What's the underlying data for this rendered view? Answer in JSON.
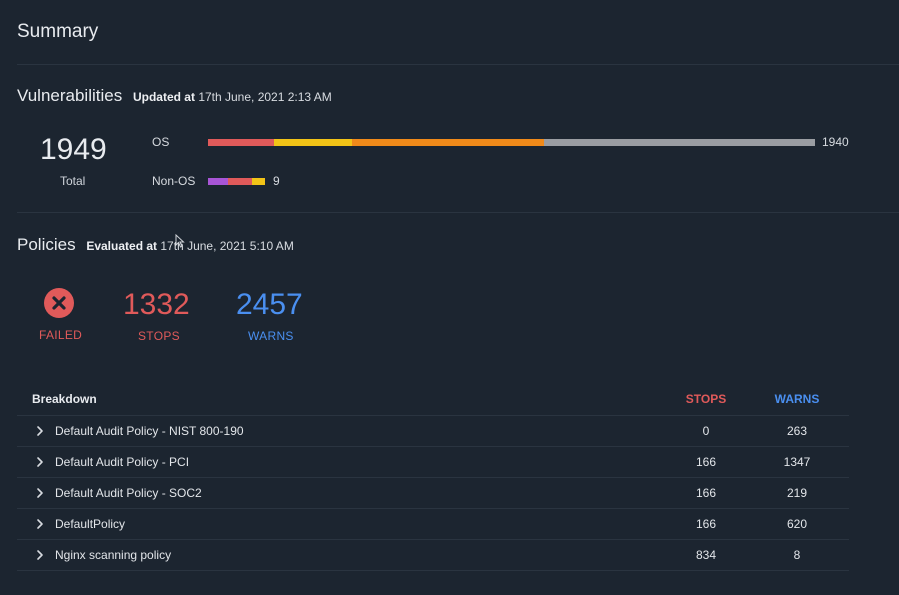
{
  "page_title": "Summary",
  "vulnerabilities": {
    "title": "Vulnerabilities",
    "updated_label": "Updated at",
    "updated_value": "17th June, 2021 2:13 AM",
    "total_value": "1949",
    "total_label": "Total",
    "os": {
      "label": "OS",
      "count": "1940",
      "segments": [
        {
          "color": "#e05a5a",
          "fraction": 0.108
        },
        {
          "color": "#f2c417",
          "fraction": 0.13
        },
        {
          "color": "#f08a1a",
          "fraction": 0.315
        },
        {
          "color": "#9a9da2",
          "fraction": 0.447
        }
      ]
    },
    "non_os": {
      "label": "Non-OS",
      "count": "9",
      "segments": [
        {
          "color": "#a855d6",
          "fraction": 0.35
        },
        {
          "color": "#e05a5a",
          "fraction": 0.42
        },
        {
          "color": "#f2c417",
          "fraction": 0.23
        }
      ]
    }
  },
  "policies": {
    "title": "Policies",
    "evaluated_label": "Evaluated at",
    "evaluated_value": "17th June, 2021 5:10 AM",
    "status_label": "FAILED",
    "stops_value": "1332",
    "stops_label": "STOPS",
    "warns_value": "2457",
    "warns_label": "WARNS"
  },
  "breakdown": {
    "header": "Breakdown",
    "stops_header": "STOPS",
    "warns_header": "WARNS",
    "rows": [
      {
        "name": "Default Audit Policy - NIST 800-190",
        "stops": "0",
        "warns": "263"
      },
      {
        "name": "Default Audit Policy - PCI",
        "stops": "166",
        "warns": "1347"
      },
      {
        "name": "Default Audit Policy - SOC2",
        "stops": "166",
        "warns": "219"
      },
      {
        "name": "DefaultPolicy",
        "stops": "166",
        "warns": "620"
      },
      {
        "name": "Nginx scanning policy",
        "stops": "834",
        "warns": "8"
      }
    ]
  },
  "colors": {
    "background": "#1c2530",
    "stops_red": "#e05a5a",
    "warns_blue": "#4a8ff0"
  }
}
